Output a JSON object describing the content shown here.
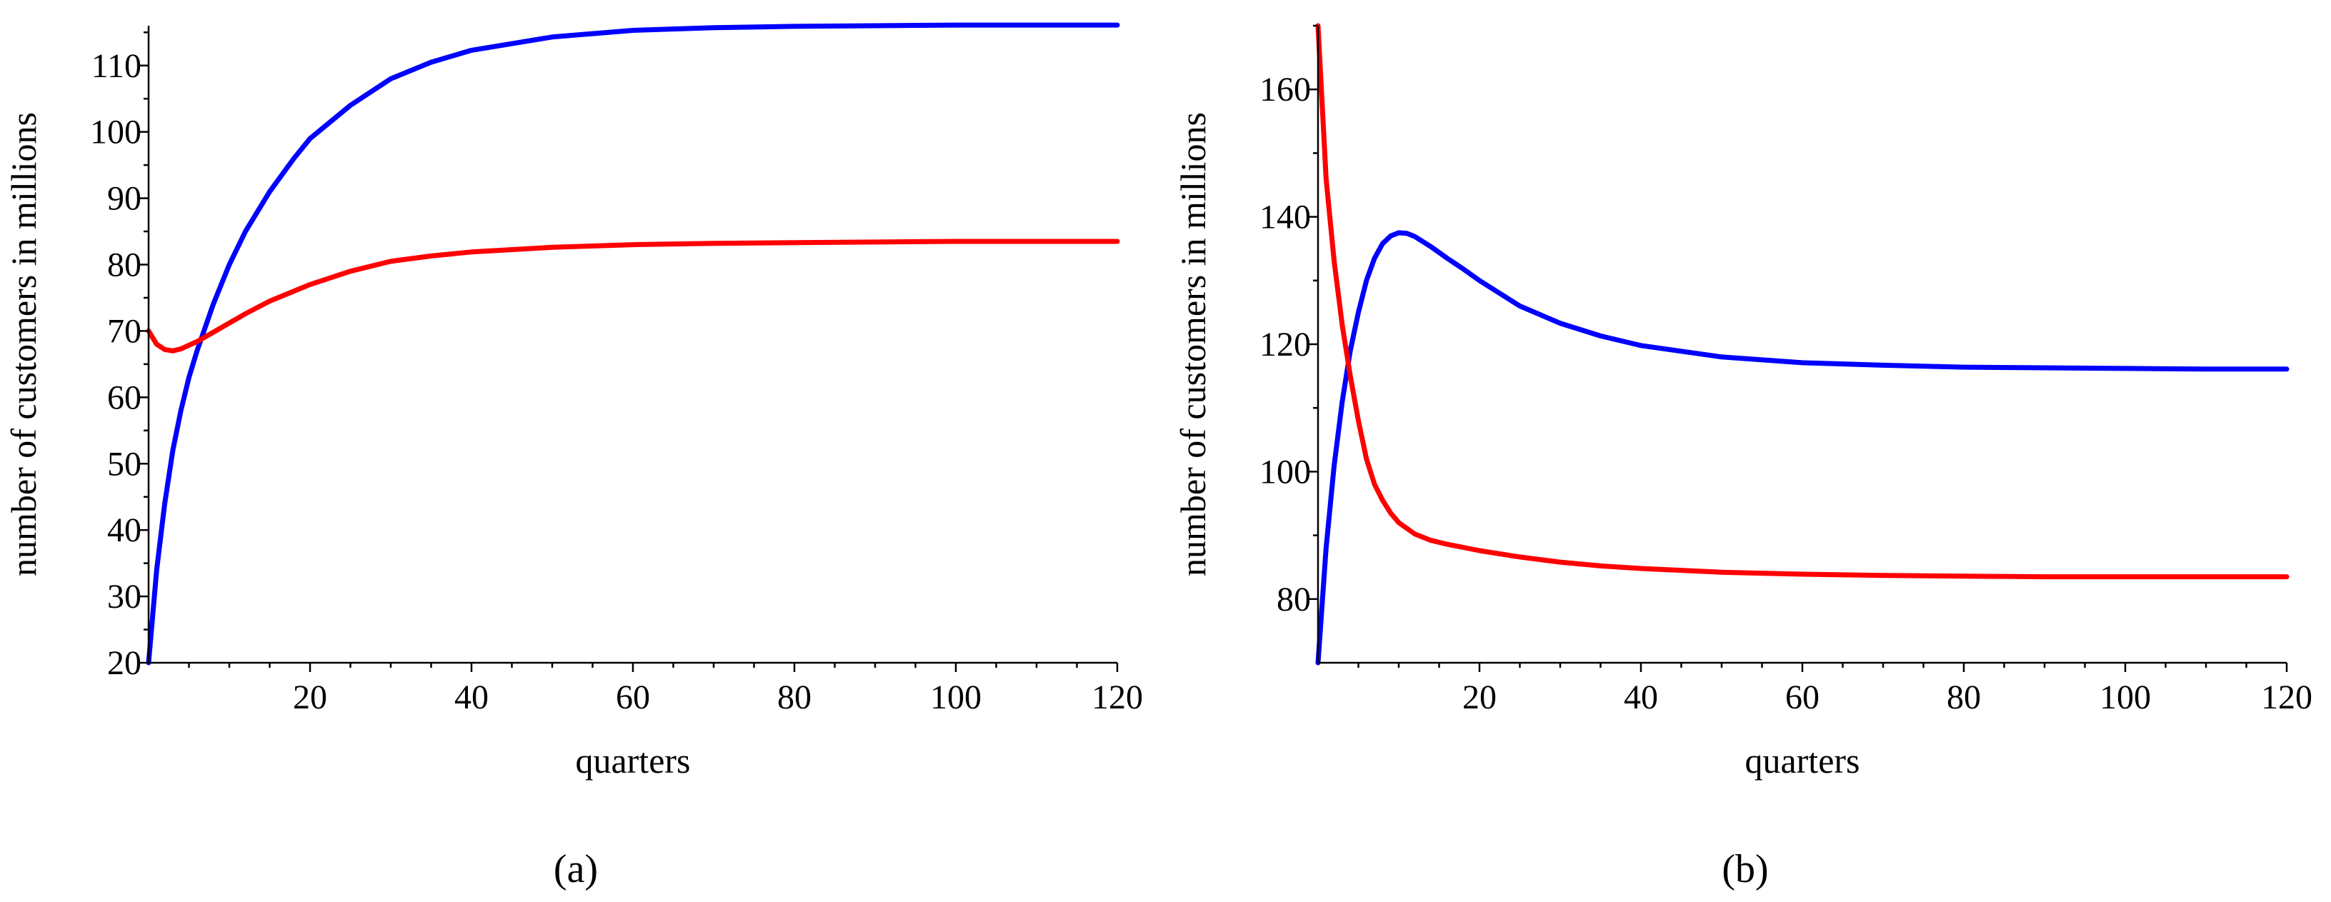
{
  "chart_data": [
    {
      "type": "line",
      "panel_label": "(a)",
      "xlabel": "quarters",
      "ylabel": "number of customers in millions",
      "xlim": [
        0,
        120
      ],
      "ylim": [
        20,
        116
      ],
      "xticks": [
        20,
        40,
        60,
        80,
        100,
        120
      ],
      "yticks": [
        20,
        30,
        40,
        50,
        60,
        70,
        80,
        90,
        100,
        110
      ],
      "series": [
        {
          "name": "blue",
          "color": "#0000ff",
          "x": [
            0,
            1,
            2,
            3,
            4,
            5,
            6,
            8,
            10,
            12,
            15,
            18,
            20,
            25,
            30,
            35,
            40,
            50,
            60,
            70,
            80,
            90,
            100,
            110,
            120
          ],
          "y": [
            20,
            34,
            44,
            52,
            58,
            63,
            67,
            74,
            80,
            85,
            91,
            96,
            99,
            104,
            108,
            110.5,
            112.3,
            114.3,
            115.3,
            115.7,
            115.9,
            116,
            116.1,
            116.1,
            116.1
          ]
        },
        {
          "name": "red",
          "color": "#ff0000",
          "x": [
            0,
            1,
            2,
            3,
            4,
            6,
            8,
            10,
            12,
            15,
            20,
            25,
            30,
            35,
            40,
            50,
            60,
            70,
            80,
            90,
            100,
            110,
            120
          ],
          "y": [
            70,
            68,
            67.2,
            67,
            67.3,
            68.4,
            69.8,
            71.2,
            72.6,
            74.5,
            77,
            79,
            80.5,
            81.3,
            81.9,
            82.6,
            83,
            83.2,
            83.3,
            83.4,
            83.5,
            83.5,
            83.5
          ]
        }
      ]
    },
    {
      "type": "line",
      "panel_label": "(b)",
      "xlabel": "quarters",
      "ylabel": "number of customers in millions",
      "xlim": [
        0,
        120
      ],
      "ylim": [
        70,
        170
      ],
      "xticks": [
        20,
        40,
        60,
        80,
        100,
        120
      ],
      "yticks": [
        80,
        100,
        120,
        140,
        160
      ],
      "series": [
        {
          "name": "blue",
          "color": "#0000ff",
          "x": [
            0,
            1,
            2,
            3,
            4,
            5,
            6,
            7,
            8,
            9,
            10,
            11,
            12,
            14,
            16,
            18,
            20,
            25,
            30,
            35,
            40,
            50,
            60,
            70,
            80,
            90,
            100,
            110,
            120
          ],
          "y": [
            70,
            88,
            101,
            111,
            119,
            125,
            130,
            133.5,
            135.8,
            137,
            137.5,
            137.4,
            136.9,
            135.3,
            133.5,
            131.8,
            130,
            126,
            123.3,
            121.3,
            119.8,
            118,
            117.1,
            116.7,
            116.4,
            116.3,
            116.2,
            116.1,
            116.1
          ]
        },
        {
          "name": "red",
          "color": "#ff0000",
          "x": [
            0,
            1,
            2,
            3,
            4,
            5,
            6,
            7,
            8,
            9,
            10,
            12,
            14,
            16,
            18,
            20,
            25,
            30,
            35,
            40,
            50,
            60,
            70,
            80,
            90,
            100,
            110,
            120
          ],
          "y": [
            170,
            146,
            133,
            123,
            115,
            108,
            102,
            98,
            95.5,
            93.5,
            92,
            90.2,
            89.2,
            88.6,
            88.1,
            87.6,
            86.6,
            85.8,
            85.2,
            84.8,
            84.2,
            83.9,
            83.7,
            83.6,
            83.5,
            83.5,
            83.5,
            83.5
          ]
        }
      ]
    }
  ]
}
